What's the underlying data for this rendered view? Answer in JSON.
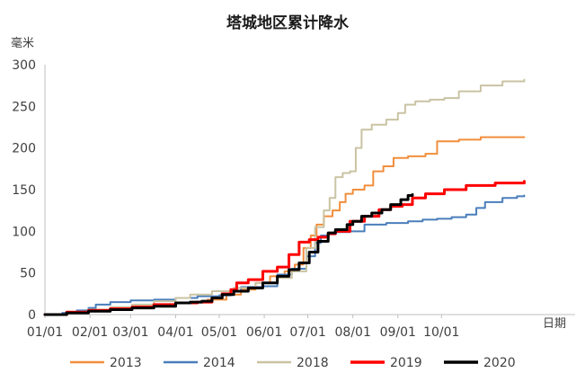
{
  "chart_data": {
    "type": "line",
    "title": "塔城地区累计降水",
    "ylabel": "毫米",
    "xlabel": "日期",
    "ylim": [
      0,
      300
    ],
    "yticks": [
      0,
      50,
      100,
      150,
      200,
      250,
      300
    ],
    "xlim": [
      0,
      365
    ],
    "xticks": [
      {
        "label": "01/01",
        "day": 0
      },
      {
        "label": "02/01",
        "day": 31
      },
      {
        "label": "03/01",
        "day": 59
      },
      {
        "label": "04/01",
        "day": 90
      },
      {
        "label": "05/01",
        "day": 120
      },
      {
        "label": "06/01",
        "day": 151
      },
      {
        "label": "07/01",
        "day": 181
      },
      {
        "label": "08/01",
        "day": 212
      },
      {
        "label": "09/01",
        "day": 243
      },
      {
        "label": "10/01",
        "day": 273
      }
    ],
    "grid": false,
    "legend_position": "bottom",
    "series": [
      {
        "name": "2013",
        "color": "#f28e3c",
        "stroke": 2,
        "points": [
          [
            0,
            0
          ],
          [
            14,
            2
          ],
          [
            28,
            4
          ],
          [
            40,
            6
          ],
          [
            50,
            8
          ],
          [
            62,
            10
          ],
          [
            75,
            12
          ],
          [
            90,
            14
          ],
          [
            100,
            15
          ],
          [
            112,
            18
          ],
          [
            125,
            24
          ],
          [
            135,
            30
          ],
          [
            145,
            38
          ],
          [
            155,
            46
          ],
          [
            165,
            52
          ],
          [
            172,
            60
          ],
          [
            178,
            80
          ],
          [
            183,
            95
          ],
          [
            187,
            108
          ],
          [
            192,
            118
          ],
          [
            198,
            125
          ],
          [
            203,
            135
          ],
          [
            207,
            145
          ],
          [
            212,
            150
          ],
          [
            220,
            155
          ],
          [
            226,
            172
          ],
          [
            233,
            178
          ],
          [
            240,
            188
          ],
          [
            250,
            190
          ],
          [
            262,
            193
          ],
          [
            270,
            208
          ],
          [
            285,
            210
          ],
          [
            300,
            213
          ],
          [
            320,
            213
          ],
          [
            330,
            213
          ]
        ]
      },
      {
        "name": "2014",
        "color": "#4a7ebb",
        "stroke": 2,
        "points": [
          [
            0,
            0
          ],
          [
            12,
            2
          ],
          [
            22,
            5
          ],
          [
            30,
            8
          ],
          [
            35,
            12
          ],
          [
            45,
            15
          ],
          [
            59,
            17
          ],
          [
            75,
            18
          ],
          [
            90,
            20
          ],
          [
            105,
            22
          ],
          [
            120,
            23
          ],
          [
            128,
            28
          ],
          [
            135,
            33
          ],
          [
            150,
            34
          ],
          [
            160,
            48
          ],
          [
            170,
            55
          ],
          [
            180,
            70
          ],
          [
            186,
            86
          ],
          [
            190,
            95
          ],
          [
            195,
            98
          ],
          [
            200,
            99
          ],
          [
            210,
            100
          ],
          [
            220,
            108
          ],
          [
            235,
            110
          ],
          [
            250,
            112
          ],
          [
            260,
            114
          ],
          [
            270,
            115
          ],
          [
            280,
            117
          ],
          [
            290,
            120
          ],
          [
            297,
            128
          ],
          [
            303,
            135
          ],
          [
            315,
            140
          ],
          [
            325,
            142
          ],
          [
            330,
            143
          ]
        ]
      },
      {
        "name": "2018",
        "color": "#c9c3a3",
        "stroke": 2,
        "points": [
          [
            0,
            0
          ],
          [
            15,
            3
          ],
          [
            30,
            6
          ],
          [
            45,
            9
          ],
          [
            60,
            12
          ],
          [
            75,
            16
          ],
          [
            90,
            20
          ],
          [
            100,
            24
          ],
          [
            115,
            28
          ],
          [
            130,
            32
          ],
          [
            145,
            38
          ],
          [
            160,
            44
          ],
          [
            170,
            52
          ],
          [
            180,
            80
          ],
          [
            186,
            105
          ],
          [
            192,
            125
          ],
          [
            196,
            140
          ],
          [
            200,
            165
          ],
          [
            205,
            170
          ],
          [
            210,
            172
          ],
          [
            214,
            200
          ],
          [
            218,
            222
          ],
          [
            225,
            228
          ],
          [
            235,
            234
          ],
          [
            243,
            242
          ],
          [
            248,
            252
          ],
          [
            255,
            256
          ],
          [
            265,
            258
          ],
          [
            275,
            260
          ],
          [
            285,
            268
          ],
          [
            300,
            275
          ],
          [
            315,
            280
          ],
          [
            330,
            282
          ]
        ]
      },
      {
        "name": "2019",
        "color": "#ff0000",
        "stroke": 3,
        "points": [
          [
            0,
            0
          ],
          [
            15,
            3
          ],
          [
            30,
            5
          ],
          [
            45,
            7
          ],
          [
            60,
            9
          ],
          [
            75,
            12
          ],
          [
            90,
            14
          ],
          [
            105,
            15
          ],
          [
            115,
            20
          ],
          [
            122,
            25
          ],
          [
            128,
            30
          ],
          [
            132,
            38
          ],
          [
            140,
            42
          ],
          [
            150,
            52
          ],
          [
            160,
            57
          ],
          [
            168,
            72
          ],
          [
            175,
            87
          ],
          [
            182,
            90
          ],
          [
            188,
            93
          ],
          [
            195,
            97
          ],
          [
            200,
            100
          ],
          [
            210,
            112
          ],
          [
            220,
            118
          ],
          [
            230,
            126
          ],
          [
            238,
            130
          ],
          [
            246,
            132
          ],
          [
            253,
            140
          ],
          [
            262,
            145
          ],
          [
            275,
            150
          ],
          [
            290,
            155
          ],
          [
            310,
            158
          ],
          [
            330,
            160
          ]
        ]
      },
      {
        "name": "2020",
        "color": "#000000",
        "stroke": 3,
        "points": [
          [
            0,
            0
          ],
          [
            15,
            2
          ],
          [
            30,
            4
          ],
          [
            45,
            6
          ],
          [
            60,
            8
          ],
          [
            75,
            10
          ],
          [
            90,
            14
          ],
          [
            100,
            15
          ],
          [
            108,
            16
          ],
          [
            115,
            20
          ],
          [
            122,
            24
          ],
          [
            130,
            28
          ],
          [
            140,
            32
          ],
          [
            150,
            38
          ],
          [
            160,
            46
          ],
          [
            168,
            54
          ],
          [
            175,
            62
          ],
          [
            182,
            75
          ],
          [
            188,
            88
          ],
          [
            195,
            98
          ],
          [
            200,
            102
          ],
          [
            208,
            108
          ],
          [
            212,
            112
          ],
          [
            218,
            118
          ],
          [
            225,
            122
          ],
          [
            232,
            126
          ],
          [
            238,
            132
          ],
          [
            245,
            138
          ],
          [
            250,
            143
          ],
          [
            253,
            144
          ]
        ]
      }
    ]
  }
}
